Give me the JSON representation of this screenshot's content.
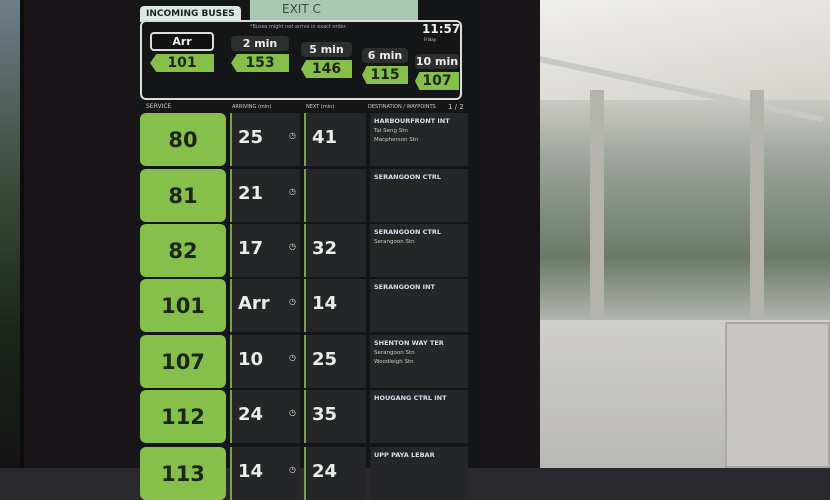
{
  "header": {
    "top_bar_text": "EXIT C",
    "tab_label": "INCOMING BUSES",
    "note": "*Buses might not arrive in exact order.",
    "time": "11:57",
    "day": "Friday"
  },
  "incoming": [
    {
      "time": "Arr",
      "service": "101"
    },
    {
      "time": "2 min",
      "service": "153"
    },
    {
      "time": "5 min",
      "service": "146"
    },
    {
      "time": "6 min",
      "service": "115"
    },
    {
      "time": "10 min",
      "service": "107"
    }
  ],
  "columns": {
    "service": "SERVICE",
    "arriving": "ARRIVING (min)",
    "next": "NEXT (min)",
    "destination": "DESTINATION / WAYPOINTS",
    "page": "1 / 2"
  },
  "rows": [
    {
      "service": "80",
      "arriving": "25",
      "next": "41",
      "destination": "HARBOURFRONT INT",
      "waypoints": [
        "Tai Seng Stn",
        "Macpherson Stn"
      ]
    },
    {
      "service": "81",
      "arriving": "21",
      "next": "",
      "destination": "SERANGOON CTRL",
      "waypoints": []
    },
    {
      "service": "82",
      "arriving": "17",
      "next": "32",
      "destination": "SERANGOON CTRL",
      "waypoints": [
        "Serangoon Stn"
      ]
    },
    {
      "service": "101",
      "arriving": "Arr",
      "next": "14",
      "destination": "SERANGOON INT",
      "waypoints": []
    },
    {
      "service": "107",
      "arriving": "10",
      "next": "25",
      "destination": "SHENTON WAY TER",
      "waypoints": [
        "Serangoon Stn",
        "Woodleigh Stn"
      ]
    },
    {
      "service": "112",
      "arriving": "24",
      "next": "35",
      "destination": "HOUGANG CTRL INT",
      "waypoints": []
    },
    {
      "service": "113",
      "arriving": "14",
      "next": "24",
      "destination": "UPP PAYA LEBAR",
      "waypoints": []
    }
  ],
  "colors": {
    "service_green": "#86c04a",
    "panel": "#151617"
  }
}
